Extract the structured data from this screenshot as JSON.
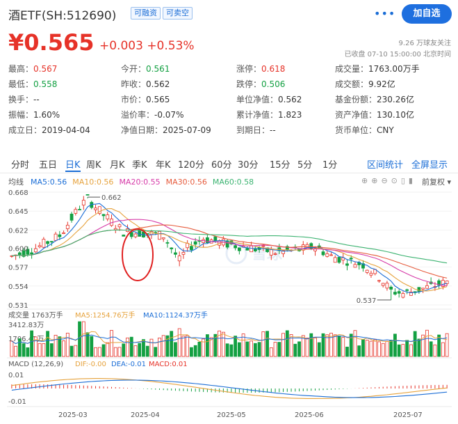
{
  "header": {
    "title": "酒ETF(SH:512690)",
    "tags": [
      "可融资",
      "可卖空"
    ],
    "more_icon": "more-dots-icon",
    "add_button": "加自选"
  },
  "quote": {
    "price": "¥0.565",
    "change": "+0.003 +0.53%",
    "followers": "9.26 万球友关注",
    "status": "已收盘 07-10 15:00:00 北京时间"
  },
  "stats": [
    [
      {
        "label": "最高：",
        "value": "0.567",
        "color": "red"
      },
      {
        "label": "今开：",
        "value": "0.561",
        "color": "green"
      },
      {
        "label": "涨停：",
        "value": "0.618",
        "color": "red"
      },
      {
        "label": "成交量：",
        "value": "1763.00万手",
        "color": ""
      }
    ],
    [
      {
        "label": "最低：",
        "value": "0.558",
        "color": "green"
      },
      {
        "label": "昨收：",
        "value": "0.562",
        "color": ""
      },
      {
        "label": "跌停：",
        "value": "0.506",
        "color": "green"
      },
      {
        "label": "成交额：",
        "value": "9.92亿",
        "color": ""
      }
    ],
    [
      {
        "label": "换手：",
        "value": "--",
        "color": ""
      },
      {
        "label": "市价：",
        "value": "0.565",
        "color": ""
      },
      {
        "label": "单位净值：",
        "value": "0.562",
        "color": ""
      },
      {
        "label": "基金份额：",
        "value": "230.26亿",
        "color": ""
      }
    ],
    [
      {
        "label": "振幅：",
        "value": "1.60%",
        "color": ""
      },
      {
        "label": "溢价率：",
        "value": "-0.07%",
        "color": ""
      },
      {
        "label": "累计净值：",
        "value": "1.823",
        "color": ""
      },
      {
        "label": "资产净值：",
        "value": "130.10亿",
        "color": ""
      }
    ],
    [
      {
        "label": "成立日：",
        "value": "2019-04-04",
        "color": ""
      },
      {
        "label": "净值日期：",
        "value": "2025-07-09",
        "color": ""
      },
      {
        "label": "到期日：",
        "value": "--",
        "color": ""
      },
      {
        "label": "货币单位：",
        "value": "CNY",
        "color": ""
      }
    ]
  ],
  "tabs": [
    "分时",
    "五日",
    "日K",
    "周K",
    "月K",
    "季K",
    "年K",
    "120分",
    "60分",
    "30分",
    "15分",
    "5分",
    "1分"
  ],
  "active_tab": "日K",
  "tab_links": [
    "区间统计",
    "全屏显示"
  ],
  "kline": {
    "legend_prefix": "均线",
    "ma": [
      {
        "label": "MA5:0.56",
        "color": "#1a6dd6"
      },
      {
        "label": "MA10:0.56",
        "color": "#e6a23c"
      },
      {
        "label": "MA20:0.55",
        "color": "#d63aa8"
      },
      {
        "label": "MA30:0.56",
        "color": "#e65b3c"
      },
      {
        "label": "MA60:0.58",
        "color": "#3cb371"
      }
    ],
    "price_ticks": [
      "0.668",
      "0.645",
      "0.622",
      "0.600",
      "0.577",
      "0.554",
      "0.531"
    ],
    "high_label": "0.662",
    "low_label": "0.537",
    "fq_label": "前复权",
    "watermark": "雪球"
  },
  "volume": {
    "title": "成交量 1763万手",
    "ma5": "MA5:1254.76万手",
    "ma10": "MA10:1124.37万手",
    "ticks": [
      "3412.83万",
      "1706.42万"
    ]
  },
  "macd": {
    "title": "MACD (12,26,9)",
    "dif": "DIF:-0.00",
    "dea": "DEA:-0.01",
    "macd": "MACD:0.01",
    "ticks": [
      "0.01",
      "-0.01"
    ]
  },
  "x_labels": [
    "2025-03",
    "2025-04",
    "2025-05",
    "2025-06",
    "2025-07"
  ]
}
